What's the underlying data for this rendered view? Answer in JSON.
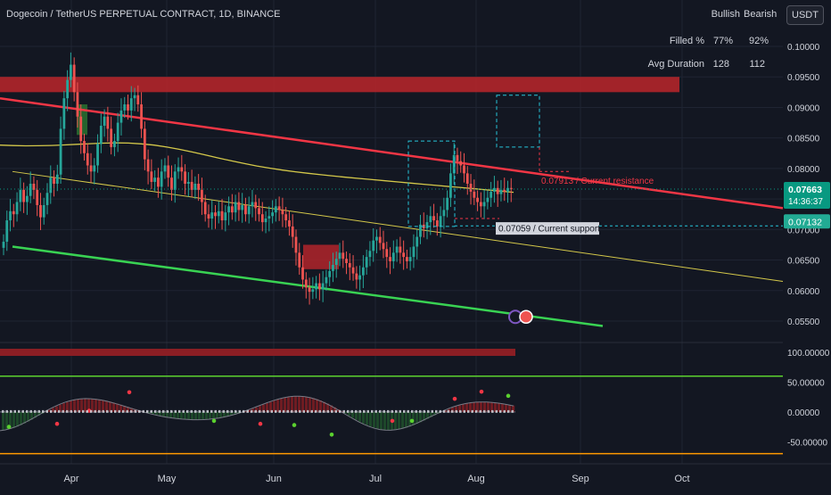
{
  "header": {
    "title": "Dogecoin / TetherUS PERPETUAL CONTRACT, 1D, BINANCE",
    "currency_button": "USDT"
  },
  "stats_table": {
    "columns": [
      "Bullish",
      "Bearish"
    ],
    "rows": [
      {
        "label": "Filled %",
        "bullish": "77%",
        "bearish": "92%"
      },
      {
        "label": "Avg Duration",
        "bullish": "128",
        "bearish": "112"
      }
    ]
  },
  "annotations": {
    "resistance_label": "0.07913 / Current resistance",
    "support_label": "0.07059 / Current support",
    "price_badge": "0.07663",
    "countdown": "14:36:37",
    "support_badge": "0.07132"
  },
  "colors": {
    "background": "#131722",
    "up": "#26a69a",
    "down": "#ef5350",
    "resistance": "#f23645",
    "support_line": "#39d353",
    "ma": "#d4c84a",
    "zone": "#b2252a",
    "badge": "#089981",
    "support_badge": "#22ab94"
  },
  "chart_data": [
    {
      "type": "candlestick",
      "x_ticks": [
        "Apr",
        "May",
        "Jun",
        "Jul",
        "Aug",
        "Sep",
        "Oct"
      ],
      "y_ticks": [
        "0.10000",
        "0.09500",
        "0.09000",
        "0.08500",
        "0.08000",
        "0.07500",
        "0.07000",
        "0.06500",
        "0.06000",
        "0.05500"
      ],
      "ylim": [
        0.052,
        0.104
      ],
      "current_price": 0.07663,
      "resistance": 0.07913,
      "support": 0.07059,
      "supply_zone": [
        0.0925,
        0.095
      ],
      "close": [
        0.068,
        0.0715,
        0.073,
        0.0725,
        0.0745,
        0.0765,
        0.0745,
        0.0755,
        0.0775,
        0.0765,
        0.074,
        0.072,
        0.074,
        0.076,
        0.0785,
        0.0775,
        0.079,
        0.0865,
        0.0915,
        0.0945,
        0.097,
        0.0925,
        0.0885,
        0.0845,
        0.0825,
        0.0805,
        0.0795,
        0.0805,
        0.084,
        0.087,
        0.0885,
        0.0865,
        0.0835,
        0.0845,
        0.0875,
        0.0895,
        0.0905,
        0.0895,
        0.0915,
        0.092,
        0.0905,
        0.0865,
        0.0815,
        0.0795,
        0.0778,
        0.0785,
        0.077,
        0.0795,
        0.0805,
        0.0785,
        0.0765,
        0.0795,
        0.0802,
        0.0795,
        0.0775,
        0.0778,
        0.0765,
        0.0775,
        0.0765,
        0.0745,
        0.0725,
        0.0718,
        0.0728,
        0.0722,
        0.073,
        0.0715,
        0.0728,
        0.0738,
        0.0728,
        0.0745,
        0.0732,
        0.074,
        0.0725,
        0.0738,
        0.0745,
        0.0735,
        0.0725,
        0.0712,
        0.0718,
        0.0722,
        0.0728,
        0.0738,
        0.0732,
        0.0725,
        0.0715,
        0.0705,
        0.0688,
        0.0662,
        0.0638,
        0.0618,
        0.0605,
        0.0598,
        0.0602,
        0.0612,
        0.0602,
        0.0612,
        0.0622,
        0.0632,
        0.0642,
        0.0652,
        0.0662,
        0.0652,
        0.0645,
        0.0638,
        0.0628,
        0.0618,
        0.0625,
        0.0638,
        0.0655,
        0.0665,
        0.0682,
        0.0688,
        0.0678,
        0.0668,
        0.0655,
        0.0648,
        0.0662,
        0.0672,
        0.0662,
        0.0655,
        0.0648,
        0.0655,
        0.0672,
        0.0688,
        0.0708,
        0.0702,
        0.0712,
        0.0722,
        0.0715,
        0.0705,
        0.0722,
        0.0732,
        0.0752,
        0.0792,
        0.0822,
        0.0812,
        0.0805,
        0.0792,
        0.0775,
        0.0762,
        0.0752,
        0.0745,
        0.0738,
        0.0745,
        0.0752,
        0.0762,
        0.0768,
        0.0758,
        0.0765,
        0.0762,
        0.0768,
        0.0766
      ],
      "moving_average": {
        "start": 0.0836,
        "end": 0.0761
      },
      "channel_upper": {
        "start": 0.0915,
        "end_price_at_oct_tail": 0.0735
      },
      "channel_inner": {
        "start": 0.0795,
        "end_price_at_oct_tail": 0.0615
      },
      "channel_lower": {
        "start": 0.0672,
        "end": 0.0542
      }
    },
    {
      "type": "oscillator",
      "y_ticks": [
        "100.00000",
        "50.00000",
        "0.00000",
        "-50.00000"
      ],
      "ylim": [
        -75,
        115
      ],
      "bands": {
        "top": 100,
        "upper": 60,
        "lower": -70
      }
    }
  ]
}
